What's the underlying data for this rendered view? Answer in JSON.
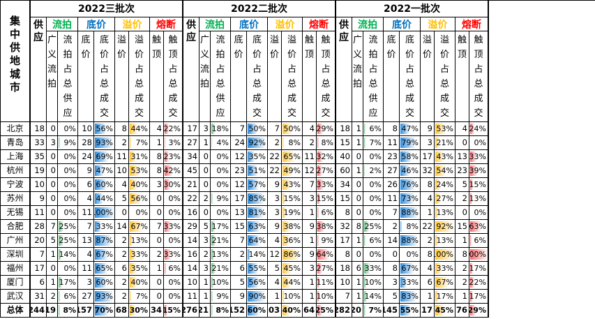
{
  "title_col": "集中供地城市",
  "total_label": "总体",
  "batches": [
    {
      "title": "2022三批次",
      "groups": {
        "supply": "供应",
        "flow": "流拍",
        "base": "底价",
        "premium": "溢价",
        "cap": "熔断"
      },
      "cols": [
        "供应",
        "广义流拍",
        "流拍占总供应",
        "底价",
        "底价占总成交",
        "溢价",
        "溢价占总成交",
        "触顶",
        "触顶占总成交"
      ],
      "rows": [
        [
          "18",
          "0",
          "0%",
          "10",
          "56%",
          "8",
          "44%",
          "4",
          "22%"
        ],
        [
          "33",
          "3",
          "9%",
          "28",
          "93%",
          "2",
          "7%",
          "1",
          "3%"
        ],
        [
          "35",
          "0",
          "0%",
          "24",
          "69%",
          "11",
          "31%",
          "8",
          "23%"
        ],
        [
          "19",
          "0",
          "0%",
          "9",
          "47%",
          "10",
          "53%",
          "8",
          "42%"
        ],
        [
          "10",
          "0",
          "0%",
          "6",
          "60%",
          "4",
          "40%",
          "3",
          "30%"
        ],
        [
          "9",
          "0",
          "0%",
          "4",
          "44%",
          "5",
          "56%",
          "0",
          "0%"
        ],
        [
          "11",
          "0",
          "0%",
          "11",
          "100%",
          "0",
          "0%",
          "0",
          "0%"
        ],
        [
          "28",
          "7",
          "25%",
          "7",
          "33%",
          "14",
          "67%",
          "7",
          "33%"
        ],
        [
          "20",
          "5",
          "25%",
          "13",
          "87%",
          "2",
          "13%",
          "0",
          "0%"
        ],
        [
          "7",
          "1",
          "14%",
          "4",
          "67%",
          "2",
          "33%",
          "2",
          "33%"
        ],
        [
          "17",
          "0",
          "0%",
          "11",
          "65%",
          "6",
          "35%",
          "1",
          "6%"
        ],
        [
          "6",
          "1",
          "17%",
          "3",
          "60%",
          "2",
          "40%",
          "0",
          "0%"
        ],
        [
          "31",
          "2",
          "6%",
          "27",
          "93%",
          "2",
          "7%",
          "0",
          "0%"
        ]
      ],
      "total": [
        "244",
        "19",
        "8%",
        "157",
        "70%",
        "68",
        "30%",
        "34",
        "15%"
      ]
    },
    {
      "title": "2022二批次",
      "groups": {
        "supply": "供应",
        "flow": "流拍",
        "base": "底价",
        "premium": "溢价",
        "cap": "熔断"
      },
      "cols": [
        "供应",
        "广义流拍",
        "流拍占总供应",
        "底价",
        "底价占总成交",
        "溢价",
        "溢价占总成交",
        "触顶",
        "触顶占总成交"
      ],
      "rows": [
        [
          "17",
          "3",
          "18%",
          "7",
          "50%",
          "7",
          "50%",
          "4",
          "29%"
        ],
        [
          "27",
          "1",
          "4%",
          "24",
          "92%",
          "2",
          "8%",
          "2",
          "8%"
        ],
        [
          "34",
          "0",
          "0%",
          "12",
          "35%",
          "22",
          "65%",
          "11",
          "32%"
        ],
        [
          "45",
          "0",
          "0%",
          "23",
          "51%",
          "22",
          "49%",
          "12",
          "27%"
        ],
        [
          "21",
          "0",
          "0%",
          "12",
          "57%",
          "9",
          "43%",
          "7",
          "33%"
        ],
        [
          "22",
          "2",
          "9%",
          "17",
          "85%",
          "3",
          "15%",
          "3",
          "15%"
        ],
        [
          "16",
          "0",
          "0%",
          "13",
          "81%",
          "3",
          "19%",
          "1",
          "6%"
        ],
        [
          "29",
          "5",
          "17%",
          "15",
          "63%",
          "9",
          "38%",
          "9",
          "38%"
        ],
        [
          "14",
          "3",
          "21%",
          "7",
          "64%",
          "4",
          "36%",
          "1",
          "9%"
        ],
        [
          "16",
          "2",
          "13%",
          "2",
          "14%",
          "12",
          "86%",
          "9",
          "64%"
        ],
        [
          "14",
          "3",
          "21%",
          "6",
          "55%",
          "5",
          "45%",
          "3",
          "27%"
        ],
        [
          "10",
          "1",
          "10%",
          "5",
          "56%",
          "4",
          "44%",
          "1",
          "11%"
        ],
        [
          "11",
          "1",
          "9%",
          "9",
          "90%",
          "1",
          "10%",
          "1",
          "10%"
        ]
      ],
      "total": [
        "276",
        "21",
        "8%",
        "152",
        "60%",
        "103",
        "40%",
        "64",
        "25%"
      ]
    },
    {
      "title": "2022一批次",
      "groups": {
        "supply": "供应",
        "flow": "流拍",
        "base": "底价",
        "premium": "溢价",
        "cap": "熔断"
      },
      "cols": [
        "供应",
        "广义流拍",
        "流拍占总供应",
        "底价",
        "底价占总成交",
        "溢价",
        "溢价占总成交",
        "触顶",
        "触顶占总成交"
      ],
      "rows": [
        [
          "18",
          "1",
          "6%",
          "8",
          "47%",
          "9",
          "53%",
          "4",
          "24%"
        ],
        [
          "15",
          "1",
          "7%",
          "11",
          "79%",
          "3",
          "21%",
          "0",
          "0%"
        ],
        [
          "40",
          "0",
          "0%",
          "23",
          "58%",
          "17",
          "43%",
          "13",
          "33%"
        ],
        [
          "60",
          "1",
          "2%",
          "27",
          "46%",
          "32",
          "54%",
          "23",
          "39%"
        ],
        [
          "34",
          "0",
          "0%",
          "26",
          "76%",
          "8",
          "24%",
          "5",
          "15%"
        ],
        [
          "15",
          "0",
          "0%",
          "11",
          "73%",
          "4",
          "27%",
          "2",
          "13%"
        ],
        [
          "8",
          "0",
          "0%",
          "7",
          "88%",
          "1",
          "13%",
          "0",
          "0%"
        ],
        [
          "32",
          "8",
          "25%",
          "2",
          "8%",
          "22",
          "92%",
          "15",
          "63%"
        ],
        [
          "17",
          "1",
          "6%",
          "14",
          "88%",
          "2",
          "13%",
          "1",
          "6%"
        ],
        [
          "8",
          "0",
          "0%",
          "0",
          "0%",
          "8",
          "100%",
          "8",
          "100%"
        ],
        [
          "18",
          "6",
          "33%",
          "8",
          "67%",
          "4",
          "33%",
          "2",
          "17%"
        ],
        [
          "10",
          "1",
          "10%",
          "3",
          "33%",
          "6",
          "67%",
          "2",
          "22%"
        ],
        [
          "7",
          "1",
          "14%",
          "5",
          "83%",
          "1",
          "17%",
          "1",
          "17%"
        ]
      ],
      "total": [
        "282",
        "20",
        "7%",
        "145",
        "55%",
        "117",
        "45%",
        "76",
        "29%"
      ]
    }
  ],
  "cities": [
    "北京",
    "青岛",
    "上海",
    "杭州",
    "宁波",
    "苏州",
    "无锡",
    "合肥",
    "广州",
    "深圳",
    "福州",
    "厦门",
    "武汉"
  ],
  "colors": {
    "flow": "#00b050",
    "base": "#0070c0",
    "premium": "#ffc000",
    "cap": "#ff0000",
    "flow_bar": "#63be7b",
    "base_bar": "#2e8ee0",
    "premium_bar": "#ffc83d",
    "cap_bar": "#f8696b"
  }
}
